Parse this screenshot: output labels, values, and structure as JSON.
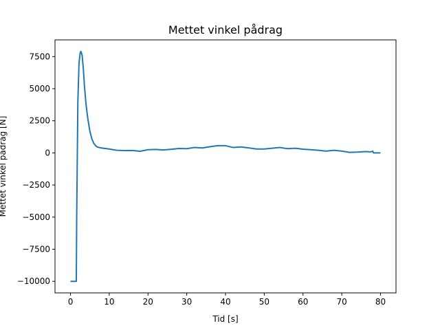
{
  "chart_data": {
    "type": "line",
    "title": "Mettet vinkel pådrag",
    "xlabel": "Tid [s]",
    "ylabel": "Mettet vinkel pådrag [N]",
    "xlim": [
      -4,
      84
    ],
    "ylim": [
      -10900,
      8800
    ],
    "xticks": [
      0,
      10,
      20,
      30,
      40,
      50,
      60,
      70,
      80
    ],
    "yticks": [
      -10000,
      -7500,
      -5000,
      -2500,
      0,
      2500,
      5000,
      7500
    ],
    "grid": false,
    "series": [
      {
        "color": "#1f77b4",
        "x": [
          0,
          1.5,
          1.6,
          1.9,
          2.2,
          2.5,
          2.7,
          3.0,
          3.3,
          3.6,
          4.0,
          4.5,
          5.0,
          5.5,
          6.0,
          6.5,
          7.0,
          8.0,
          9.0,
          10.0,
          11.0,
          12.0,
          14.0,
          16.0,
          18.0,
          20.0,
          22.0,
          24.0,
          26.0,
          28.0,
          30.0,
          32.0,
          34.0,
          36.0,
          38.0,
          40.0,
          42.0,
          44.0,
          46.0,
          48.0,
          50.0,
          52.0,
          54.0,
          56.0,
          58.0,
          60.0,
          62.0,
          64.0,
          66.0,
          68.0,
          70.0,
          72.0,
          74.0,
          76.0,
          77.5,
          78.0,
          78.2,
          80.0
        ],
        "y": [
          -10000,
          -10000,
          -5000,
          4000,
          7000,
          7800,
          7900,
          7600,
          6600,
          5200,
          3800,
          2600,
          1700,
          1100,
          750,
          550,
          450,
          380,
          340,
          300,
          250,
          200,
          180,
          190,
          130,
          250,
          270,
          230,
          280,
          340,
          330,
          420,
          380,
          480,
          560,
          560,
          420,
          460,
          390,
          300,
          300,
          360,
          420,
          330,
          360,
          290,
          250,
          200,
          140,
          200,
          140,
          40,
          60,
          100,
          80,
          130,
          0,
          0
        ]
      }
    ]
  }
}
